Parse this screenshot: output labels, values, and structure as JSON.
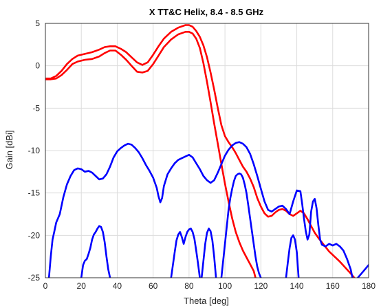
{
  "chart_data": {
    "type": "line",
    "title": "X TT&C Helix, 8.4 - 8.5 GHz",
    "xlabel": "Theta [deg]",
    "ylabel": "Gain [dBi]",
    "xlim": [
      0,
      180
    ],
    "ylim": [
      -25,
      5
    ],
    "xticks": [
      0,
      20,
      40,
      60,
      80,
      100,
      120,
      140,
      160,
      180
    ],
    "yticks": [
      5,
      0,
      -5,
      -10,
      -15,
      -20,
      -25
    ],
    "grid": true,
    "legend": "none",
    "colors": {
      "red": "#ff0000",
      "blue": "#0000ff"
    },
    "series": [
      {
        "color": "#ff0000",
        "points": [
          [
            0,
            -1.5
          ],
          [
            3,
            -1.5
          ],
          [
            6,
            -1.2
          ],
          [
            9,
            -0.6
          ],
          [
            12,
            0.2
          ],
          [
            15,
            0.8
          ],
          [
            18,
            1.2
          ],
          [
            22,
            1.4
          ],
          [
            26,
            1.6
          ],
          [
            30,
            1.9
          ],
          [
            33,
            2.2
          ],
          [
            36,
            2.3
          ],
          [
            39,
            2.3
          ],
          [
            42,
            2.0
          ],
          [
            45,
            1.6
          ],
          [
            48,
            1.0
          ],
          [
            51,
            0.4
          ],
          [
            54,
            0.1
          ],
          [
            57,
            0.4
          ],
          [
            60,
            1.3
          ],
          [
            63,
            2.3
          ],
          [
            66,
            3.2
          ],
          [
            70,
            4.0
          ],
          [
            74,
            4.5
          ],
          [
            78,
            4.8
          ],
          [
            80,
            4.8
          ],
          [
            82,
            4.6
          ],
          [
            84,
            4.1
          ],
          [
            86,
            3.4
          ],
          [
            88,
            2.4
          ],
          [
            90,
            1.0
          ],
          [
            92,
            -0.8
          ],
          [
            94,
            -2.8
          ],
          [
            96,
            -5.0
          ],
          [
            98,
            -7.0
          ],
          [
            100,
            -8.3
          ],
          [
            102,
            -9.0
          ],
          [
            104,
            -9.6
          ],
          [
            106,
            -10.3
          ],
          [
            108,
            -11.1
          ],
          [
            110,
            -11.9
          ],
          [
            112,
            -12.5
          ],
          [
            114,
            -13.3
          ],
          [
            116,
            -14.3
          ],
          [
            118,
            -15.6
          ],
          [
            120,
            -16.6
          ],
          [
            122,
            -17.4
          ],
          [
            124,
            -17.8
          ],
          [
            126,
            -17.7
          ],
          [
            128,
            -17.3
          ],
          [
            130,
            -17.0
          ],
          [
            132,
            -16.9
          ],
          [
            134,
            -17.1
          ],
          [
            136,
            -17.5
          ],
          [
            138,
            -17.7
          ],
          [
            140,
            -17.4
          ],
          [
            142,
            -17.1
          ],
          [
            144,
            -17.4
          ],
          [
            146,
            -18.1
          ],
          [
            148,
            -18.9
          ],
          [
            150,
            -19.7
          ],
          [
            152,
            -20.3
          ],
          [
            155,
            -21.1
          ],
          [
            158,
            -21.9
          ],
          [
            161,
            -22.5
          ],
          [
            164,
            -23.1
          ],
          [
            167,
            -23.8
          ],
          [
            170,
            -24.5
          ],
          [
            172,
            -25.0
          ]
        ]
      },
      {
        "color": "#ff0000",
        "points": [
          [
            0,
            -1.6
          ],
          [
            3,
            -1.6
          ],
          [
            6,
            -1.5
          ],
          [
            9,
            -1.1
          ],
          [
            12,
            -0.5
          ],
          [
            15,
            0.2
          ],
          [
            18,
            0.5
          ],
          [
            22,
            0.7
          ],
          [
            26,
            0.8
          ],
          [
            30,
            1.1
          ],
          [
            33,
            1.5
          ],
          [
            36,
            1.8
          ],
          [
            39,
            1.8
          ],
          [
            42,
            1.3
          ],
          [
            45,
            0.7
          ],
          [
            48,
            0.0
          ],
          [
            51,
            -0.7
          ],
          [
            54,
            -0.8
          ],
          [
            57,
            -0.6
          ],
          [
            60,
            0.2
          ],
          [
            63,
            1.2
          ],
          [
            66,
            2.2
          ],
          [
            70,
            3.1
          ],
          [
            74,
            3.7
          ],
          [
            78,
            4.0
          ],
          [
            80,
            4.0
          ],
          [
            82,
            3.8
          ],
          [
            84,
            3.2
          ],
          [
            86,
            2.1
          ],
          [
            88,
            0.3
          ],
          [
            90,
            -1.9
          ],
          [
            92,
            -4.3
          ],
          [
            94,
            -6.8
          ],
          [
            96,
            -9.2
          ],
          [
            98,
            -11.6
          ],
          [
            100,
            -13.9
          ],
          [
            102,
            -16.0
          ],
          [
            104,
            -18.0
          ],
          [
            106,
            -19.6
          ],
          [
            108,
            -20.8
          ],
          [
            110,
            -21.8
          ],
          [
            112,
            -22.6
          ],
          [
            114,
            -23.4
          ],
          [
            116,
            -24.2
          ],
          [
            117,
            -25.0
          ]
        ]
      },
      {
        "color": "#0000ff",
        "points": [
          [
            2,
            -25
          ],
          [
            3,
            -22.5
          ],
          [
            4,
            -20.5
          ],
          [
            5,
            -19.5
          ],
          [
            6,
            -18.5
          ],
          [
            8,
            -17.5
          ],
          [
            10,
            -15.5
          ],
          [
            12,
            -14.0
          ],
          [
            14,
            -13.0
          ],
          [
            16,
            -12.3
          ],
          [
            18,
            -12.1
          ],
          [
            20,
            -12.2
          ],
          [
            22,
            -12.5
          ],
          [
            24,
            -12.4
          ],
          [
            26,
            -12.6
          ],
          [
            28,
            -13.0
          ],
          [
            30,
            -13.4
          ],
          [
            32,
            -13.3
          ],
          [
            34,
            -12.8
          ],
          [
            36,
            -11.9
          ],
          [
            38,
            -10.8
          ],
          [
            40,
            -10.1
          ],
          [
            42,
            -9.7
          ],
          [
            44,
            -9.4
          ],
          [
            46,
            -9.2
          ],
          [
            48,
            -9.3
          ],
          [
            50,
            -9.7
          ],
          [
            52,
            -10.2
          ],
          [
            54,
            -10.9
          ],
          [
            56,
            -11.7
          ],
          [
            58,
            -12.4
          ],
          [
            60,
            -13.2
          ],
          [
            62,
            -14.4
          ],
          [
            63,
            -15.4
          ],
          [
            64,
            -16.1
          ],
          [
            65,
            -15.6
          ],
          [
            66,
            -14.2
          ],
          [
            68,
            -12.8
          ],
          [
            70,
            -12.1
          ],
          [
            72,
            -11.5
          ],
          [
            74,
            -11.1
          ],
          [
            76,
            -10.9
          ],
          [
            78,
            -10.7
          ],
          [
            80,
            -10.5
          ],
          [
            82,
            -10.8
          ],
          [
            84,
            -11.5
          ],
          [
            86,
            -12.2
          ],
          [
            88,
            -13.0
          ],
          [
            90,
            -13.5
          ],
          [
            92,
            -13.8
          ],
          [
            94,
            -13.5
          ],
          [
            96,
            -12.6
          ],
          [
            98,
            -11.6
          ],
          [
            100,
            -10.6
          ],
          [
            102,
            -9.9
          ],
          [
            104,
            -9.4
          ],
          [
            106,
            -9.1
          ],
          [
            108,
            -9.0
          ],
          [
            110,
            -9.2
          ],
          [
            112,
            -9.6
          ],
          [
            114,
            -10.4
          ],
          [
            116,
            -11.6
          ],
          [
            118,
            -13.0
          ],
          [
            120,
            -14.5
          ],
          [
            122,
            -16.0
          ],
          [
            124,
            -17.0
          ],
          [
            126,
            -17.2
          ],
          [
            128,
            -16.9
          ],
          [
            130,
            -16.6
          ],
          [
            132,
            -16.5
          ],
          [
            134,
            -16.9
          ],
          [
            136,
            -17.5
          ],
          [
            138,
            -16.0
          ],
          [
            140,
            -14.7
          ],
          [
            142,
            -14.8
          ],
          [
            143,
            -16.3
          ],
          [
            144,
            -18.0
          ],
          [
            145,
            -19.5
          ],
          [
            146,
            -20.5
          ],
          [
            147,
            -19.9
          ],
          [
            148,
            -17.2
          ],
          [
            149,
            -16.0
          ],
          [
            150,
            -15.7
          ],
          [
            151,
            -16.8
          ],
          [
            152,
            -18.8
          ],
          [
            153,
            -20.5
          ],
          [
            154,
            -21.1
          ],
          [
            156,
            -21.3
          ],
          [
            158,
            -21.0
          ],
          [
            160,
            -21.2
          ],
          [
            162,
            -21.0
          ],
          [
            164,
            -21.3
          ],
          [
            166,
            -21.8
          ],
          [
            168,
            -22.8
          ],
          [
            170,
            -24.0
          ],
          [
            171,
            -25.0
          ]
        ]
      },
      {
        "color": "#0000ff",
        "points": [
          [
            20,
            -25
          ],
          [
            21,
            -23.5
          ],
          [
            22,
            -23.0
          ],
          [
            23,
            -22.8
          ],
          [
            24,
            -22.2
          ],
          [
            25,
            -21.5
          ],
          [
            26,
            -20.5
          ],
          [
            27,
            -19.9
          ],
          [
            28,
            -19.6
          ],
          [
            29,
            -19.2
          ],
          [
            30,
            -18.9
          ],
          [
            31,
            -19.0
          ],
          [
            32,
            -19.6
          ],
          [
            33,
            -20.8
          ],
          [
            34,
            -22.5
          ],
          [
            35,
            -24.0
          ],
          [
            36,
            -25.0
          ]
        ]
      },
      {
        "color": "#0000ff",
        "points": [
          [
            70,
            -25
          ],
          [
            71,
            -23.5
          ],
          [
            72,
            -22.0
          ],
          [
            73,
            -20.6
          ],
          [
            74,
            -19.9
          ],
          [
            75,
            -19.6
          ],
          [
            76,
            -20.2
          ],
          [
            77,
            -21.0
          ],
          [
            78,
            -20.2
          ],
          [
            79,
            -19.6
          ],
          [
            80,
            -19.3
          ],
          [
            81,
            -19.2
          ],
          [
            82,
            -19.6
          ],
          [
            83,
            -20.4
          ],
          [
            84,
            -21.8
          ],
          [
            85,
            -23.3
          ],
          [
            86,
            -25.0
          ]
        ]
      },
      {
        "color": "#0000ff",
        "points": [
          [
            87,
            -25
          ],
          [
            88,
            -23.0
          ],
          [
            89,
            -21.0
          ],
          [
            90,
            -19.7
          ],
          [
            91,
            -19.2
          ],
          [
            92,
            -19.5
          ],
          [
            93,
            -20.6
          ],
          [
            94,
            -22.5
          ],
          [
            95,
            -25.0
          ]
        ]
      },
      {
        "color": "#0000ff",
        "points": [
          [
            98,
            -25
          ],
          [
            99,
            -23.0
          ],
          [
            100,
            -21.0
          ],
          [
            101,
            -19.0
          ],
          [
            102,
            -17.0
          ],
          [
            103,
            -15.6
          ],
          [
            104,
            -14.5
          ],
          [
            105,
            -13.6
          ],
          [
            106,
            -13.0
          ],
          [
            107,
            -12.8
          ],
          [
            108,
            -12.7
          ],
          [
            109,
            -12.8
          ],
          [
            110,
            -13.2
          ],
          [
            111,
            -14.0
          ],
          [
            112,
            -15.0
          ],
          [
            113,
            -16.5
          ],
          [
            114,
            -18.0
          ],
          [
            115,
            -19.5
          ],
          [
            116,
            -21.0
          ],
          [
            117,
            -22.5
          ],
          [
            118,
            -23.7
          ],
          [
            119,
            -24.5
          ],
          [
            120,
            -25.0
          ]
        ]
      },
      {
        "color": "#0000ff",
        "points": [
          [
            134,
            -25
          ],
          [
            135,
            -23.2
          ],
          [
            136,
            -21.5
          ],
          [
            137,
            -20.3
          ],
          [
            138,
            -20.0
          ],
          [
            139,
            -20.5
          ],
          [
            140,
            -22.0
          ],
          [
            141,
            -25.0
          ]
        ]
      },
      {
        "color": "#0000ff",
        "points": [
          [
            174,
            -25
          ],
          [
            176,
            -24.5
          ],
          [
            178,
            -24.0
          ],
          [
            180,
            -23.5
          ]
        ]
      }
    ]
  }
}
